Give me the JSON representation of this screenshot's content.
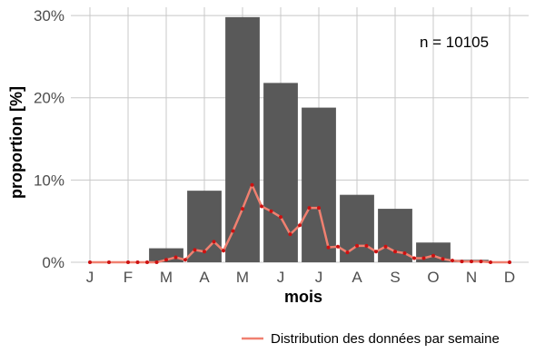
{
  "chart_data": {
    "type": "bar",
    "categories": [
      "J",
      "F",
      "M",
      "A",
      "M",
      "J",
      "J",
      "A",
      "S",
      "O",
      "N",
      "D"
    ],
    "values": [
      0,
      0,
      1.7,
      8.7,
      29.8,
      21.8,
      18.8,
      8.2,
      6.5,
      2.4,
      0.3,
      0
    ],
    "xlabel": "mois",
    "ylabel": "proportion [%]",
    "ylim": [
      0,
      31
    ],
    "yticks": [
      0,
      10,
      20,
      30
    ],
    "ytick_labels": [
      "0%",
      "10%",
      "20%",
      "30%"
    ],
    "bar_color": "#595959",
    "grid": true,
    "annotation": "n = 10105",
    "weekly_series": {
      "name": "Distribution des données par semaine",
      "color": "#f08070",
      "point_color": "#cc1111",
      "x": [
        1,
        1.5,
        2,
        2.25,
        2.5,
        2.75,
        3,
        3.25,
        3.5,
        3.75,
        4,
        4.25,
        4.5,
        4.75,
        5,
        5.25,
        5.5,
        5.75,
        6,
        6.25,
        6.5,
        6.75,
        7,
        7.25,
        7.5,
        7.75,
        8,
        8.25,
        8.5,
        8.75,
        9,
        9.25,
        9.5,
        9.75,
        10,
        10.25,
        10.5,
        10.75,
        11,
        11.25,
        11.5,
        12
      ],
      "y": [
        0,
        0,
        0,
        0,
        0,
        0,
        0.3,
        0.6,
        0.3,
        1.5,
        1.3,
        2.5,
        1.4,
        3.8,
        6.5,
        9.4,
        6.8,
        6.2,
        5.5,
        3.4,
        4.5,
        6.6,
        6.6,
        1.8,
        1.9,
        1.2,
        2.0,
        2.0,
        1.3,
        1.9,
        1.3,
        1.1,
        0.5,
        0.5,
        0.8,
        0.4,
        0.2,
        0.1,
        0.1,
        0.1,
        0,
        0
      ]
    },
    "legend": {
      "position": "bottom-right"
    }
  }
}
